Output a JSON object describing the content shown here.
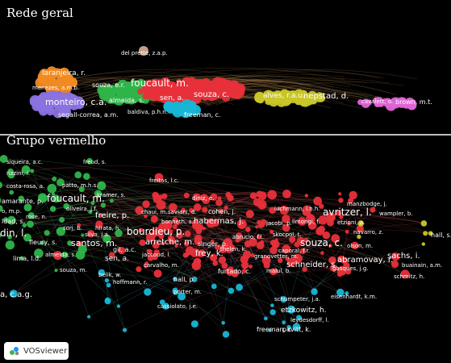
{
  "panels": {
    "general": {
      "title": "Rede geral",
      "labels": [
        {
          "text": "del prette, z.a.p.",
          "cluster": "red"
        },
        {
          "text": "laranjeira, r.",
          "cluster": "orange"
        },
        {
          "text": "menezes, a.m.b.",
          "cluster": "orange"
        },
        {
          "text": "souza, e.r.",
          "cluster": "green"
        },
        {
          "text": "foucault, m.",
          "cluster": "red"
        },
        {
          "text": "monteiro, c.a.",
          "cluster": "purple"
        },
        {
          "text": "almeida, s.",
          "cluster": "green"
        },
        {
          "text": "sen, a.",
          "cluster": "red"
        },
        {
          "text": "souza, c.",
          "cluster": "red"
        },
        {
          "text": "alves, r.a.u.",
          "cluster": "yellow"
        },
        {
          "text": "nepstad, d.",
          "cluster": "yellow"
        },
        {
          "text": "cavalett, o.",
          "cluster": "pink"
        },
        {
          "text": "brown, m.t.",
          "cluster": "pink"
        },
        {
          "text": "segall-correa, a.m.",
          "cluster": "purple"
        },
        {
          "text": "baldiva, p.h.n.",
          "cluster": "purple"
        },
        {
          "text": "freeman, c.",
          "cluster": "cyan"
        }
      ]
    },
    "red_group": {
      "title": "Grupo vermelho",
      "labels": [
        {
          "text": "siqueira, a.c.",
          "cluster": "green"
        },
        {
          "text": "freud, s.",
          "cluster": "green"
        },
        {
          "text": "rizzini, i.",
          "cluster": "green"
        },
        {
          "text": "costa-rosa, a.",
          "cluster": "green"
        },
        {
          "text": "patto, m.h.s.",
          "cluster": "green"
        },
        {
          "text": "freitas, l.c.",
          "cluster": "red"
        },
        {
          "text": "kramer, s.",
          "cluster": "green"
        },
        {
          "text": "diniz, e.",
          "cluster": "red"
        },
        {
          "text": "manzbodge, j.",
          "cluster": "red"
        },
        {
          "text": "amarante, p.",
          "cluster": "green"
        },
        {
          "text": "foucault, m.",
          "cluster": "green"
        },
        {
          "text": "oliveira, j.f.",
          "cluster": "green"
        },
        {
          "text": "chaui, m.",
          "cluster": "red"
        },
        {
          "text": "saviani, d.",
          "cluster": "red"
        },
        {
          "text": "cohen, j.",
          "cluster": "red"
        },
        {
          "text": "luchmann, l.h.h.",
          "cluster": "red"
        },
        {
          "text": "avritzer, l.",
          "cluster": "red"
        },
        {
          "text": "wampler, b.",
          "cluster": "red"
        },
        {
          "text": "o, m.p.",
          "cluster": "green"
        },
        {
          "text": "rose, n.",
          "cluster": "green"
        },
        {
          "text": "freire, p.",
          "cluster": "red"
        },
        {
          "text": "bonneth, a.",
          "cluster": "red"
        },
        {
          "text": "habermas, j.",
          "cluster": "red"
        },
        {
          "text": "jacobi, p.",
          "cluster": "red"
        },
        {
          "text": "limongi, f.",
          "cluster": "red"
        },
        {
          "text": "etzioni, a.",
          "cluster": "red"
        },
        {
          "text": "ldad, s.",
          "cluster": "green"
        },
        {
          "text": "sorj, b.",
          "cluster": "red"
        },
        {
          "text": "hirata, h.",
          "cluster": "red"
        },
        {
          "text": "hall, s.",
          "cluster": "yellow"
        },
        {
          "text": "navarro, z.",
          "cluster": "red"
        },
        {
          "text": "din, l.",
          "cluster": "green"
        },
        {
          "text": "silva, j.a.",
          "cluster": "red"
        },
        {
          "text": "bourdieu, p.",
          "cluster": "red"
        },
        {
          "text": "abrucio, f.l.",
          "cluster": "red"
        },
        {
          "text": "skocpol, t.",
          "cluster": "red"
        },
        {
          "text": "fleury, s.",
          "cluster": "green"
        },
        {
          "text": "santos, m.",
          "cluster": "red"
        },
        {
          "text": "arretche, m.",
          "cluster": "red"
        },
        {
          "text": "singer, p.",
          "cluster": "red"
        },
        {
          "text": "souza, c.",
          "cluster": "red"
        },
        {
          "text": "olson, m.",
          "cluster": "red"
        },
        {
          "text": "gil, a.c.",
          "cluster": "red"
        },
        {
          "text": "thelen, k.",
          "cluster": "red"
        },
        {
          "text": "caporal, f.r.",
          "cluster": "red"
        },
        {
          "text": "lima, l.d.",
          "cluster": "green"
        },
        {
          "text": "almeida, s.",
          "cluster": "red"
        },
        {
          "text": "sen, a.",
          "cluster": "red"
        },
        {
          "text": "frey, k.",
          "cluster": "red"
        },
        {
          "text": "granovetter, m.",
          "cluster": "red"
        },
        {
          "text": "abramovay, r.",
          "cluster": "red"
        },
        {
          "text": "sachs, i.",
          "cluster": "red"
        },
        {
          "text": "jaccoud, l.",
          "cluster": "red"
        },
        {
          "text": "buainain, a.m.",
          "cluster": "red"
        },
        {
          "text": "carvalho, m.",
          "cluster": "red"
        },
        {
          "text": "schneider, s.",
          "cluster": "red"
        },
        {
          "text": "gasques, j.g.",
          "cluster": "red"
        },
        {
          "text": "souza, m.",
          "cluster": "green"
        },
        {
          "text": "furtado, c.",
          "cluster": "red"
        },
        {
          "text": "malul, b.",
          "cluster": "red"
        },
        {
          "text": "schmitz, h.",
          "cluster": "red"
        },
        {
          "text": "belik, w.",
          "cluster": "cyan"
        },
        {
          "text": "hoffmann, r.",
          "cluster": "cyan"
        },
        {
          "text": "hall, p.",
          "cluster": "cyan"
        },
        {
          "text": "porter, m.",
          "cluster": "cyan"
        },
        {
          "text": "a, c.a.g.",
          "cluster": "cyan"
        },
        {
          "text": "schumpeter, j.a.",
          "cluster": "cyan"
        },
        {
          "text": "eisenhardt, k.m.",
          "cluster": "cyan"
        },
        {
          "text": "cassiolato, j.e.",
          "cluster": "cyan"
        },
        {
          "text": "etzkowitz, h.",
          "cluster": "cyan"
        },
        {
          "text": "leydesdorff, l.",
          "cluster": "cyan"
        },
        {
          "text": "freeman, c.",
          "cluster": "cyan"
        },
        {
          "text": "pavitt, k.",
          "cluster": "cyan"
        }
      ]
    }
  },
  "cluster_colors": {
    "red": "#e8303a",
    "green": "#2fb44a",
    "cyan": "#18b6d6",
    "yellow": "#c8c628",
    "orange": "#f08a22",
    "purple": "#8c72e0",
    "pink": "#e064d8"
  },
  "badge": {
    "label": "VOSviewer",
    "icon": "vosviewer-logo-icon"
  }
}
